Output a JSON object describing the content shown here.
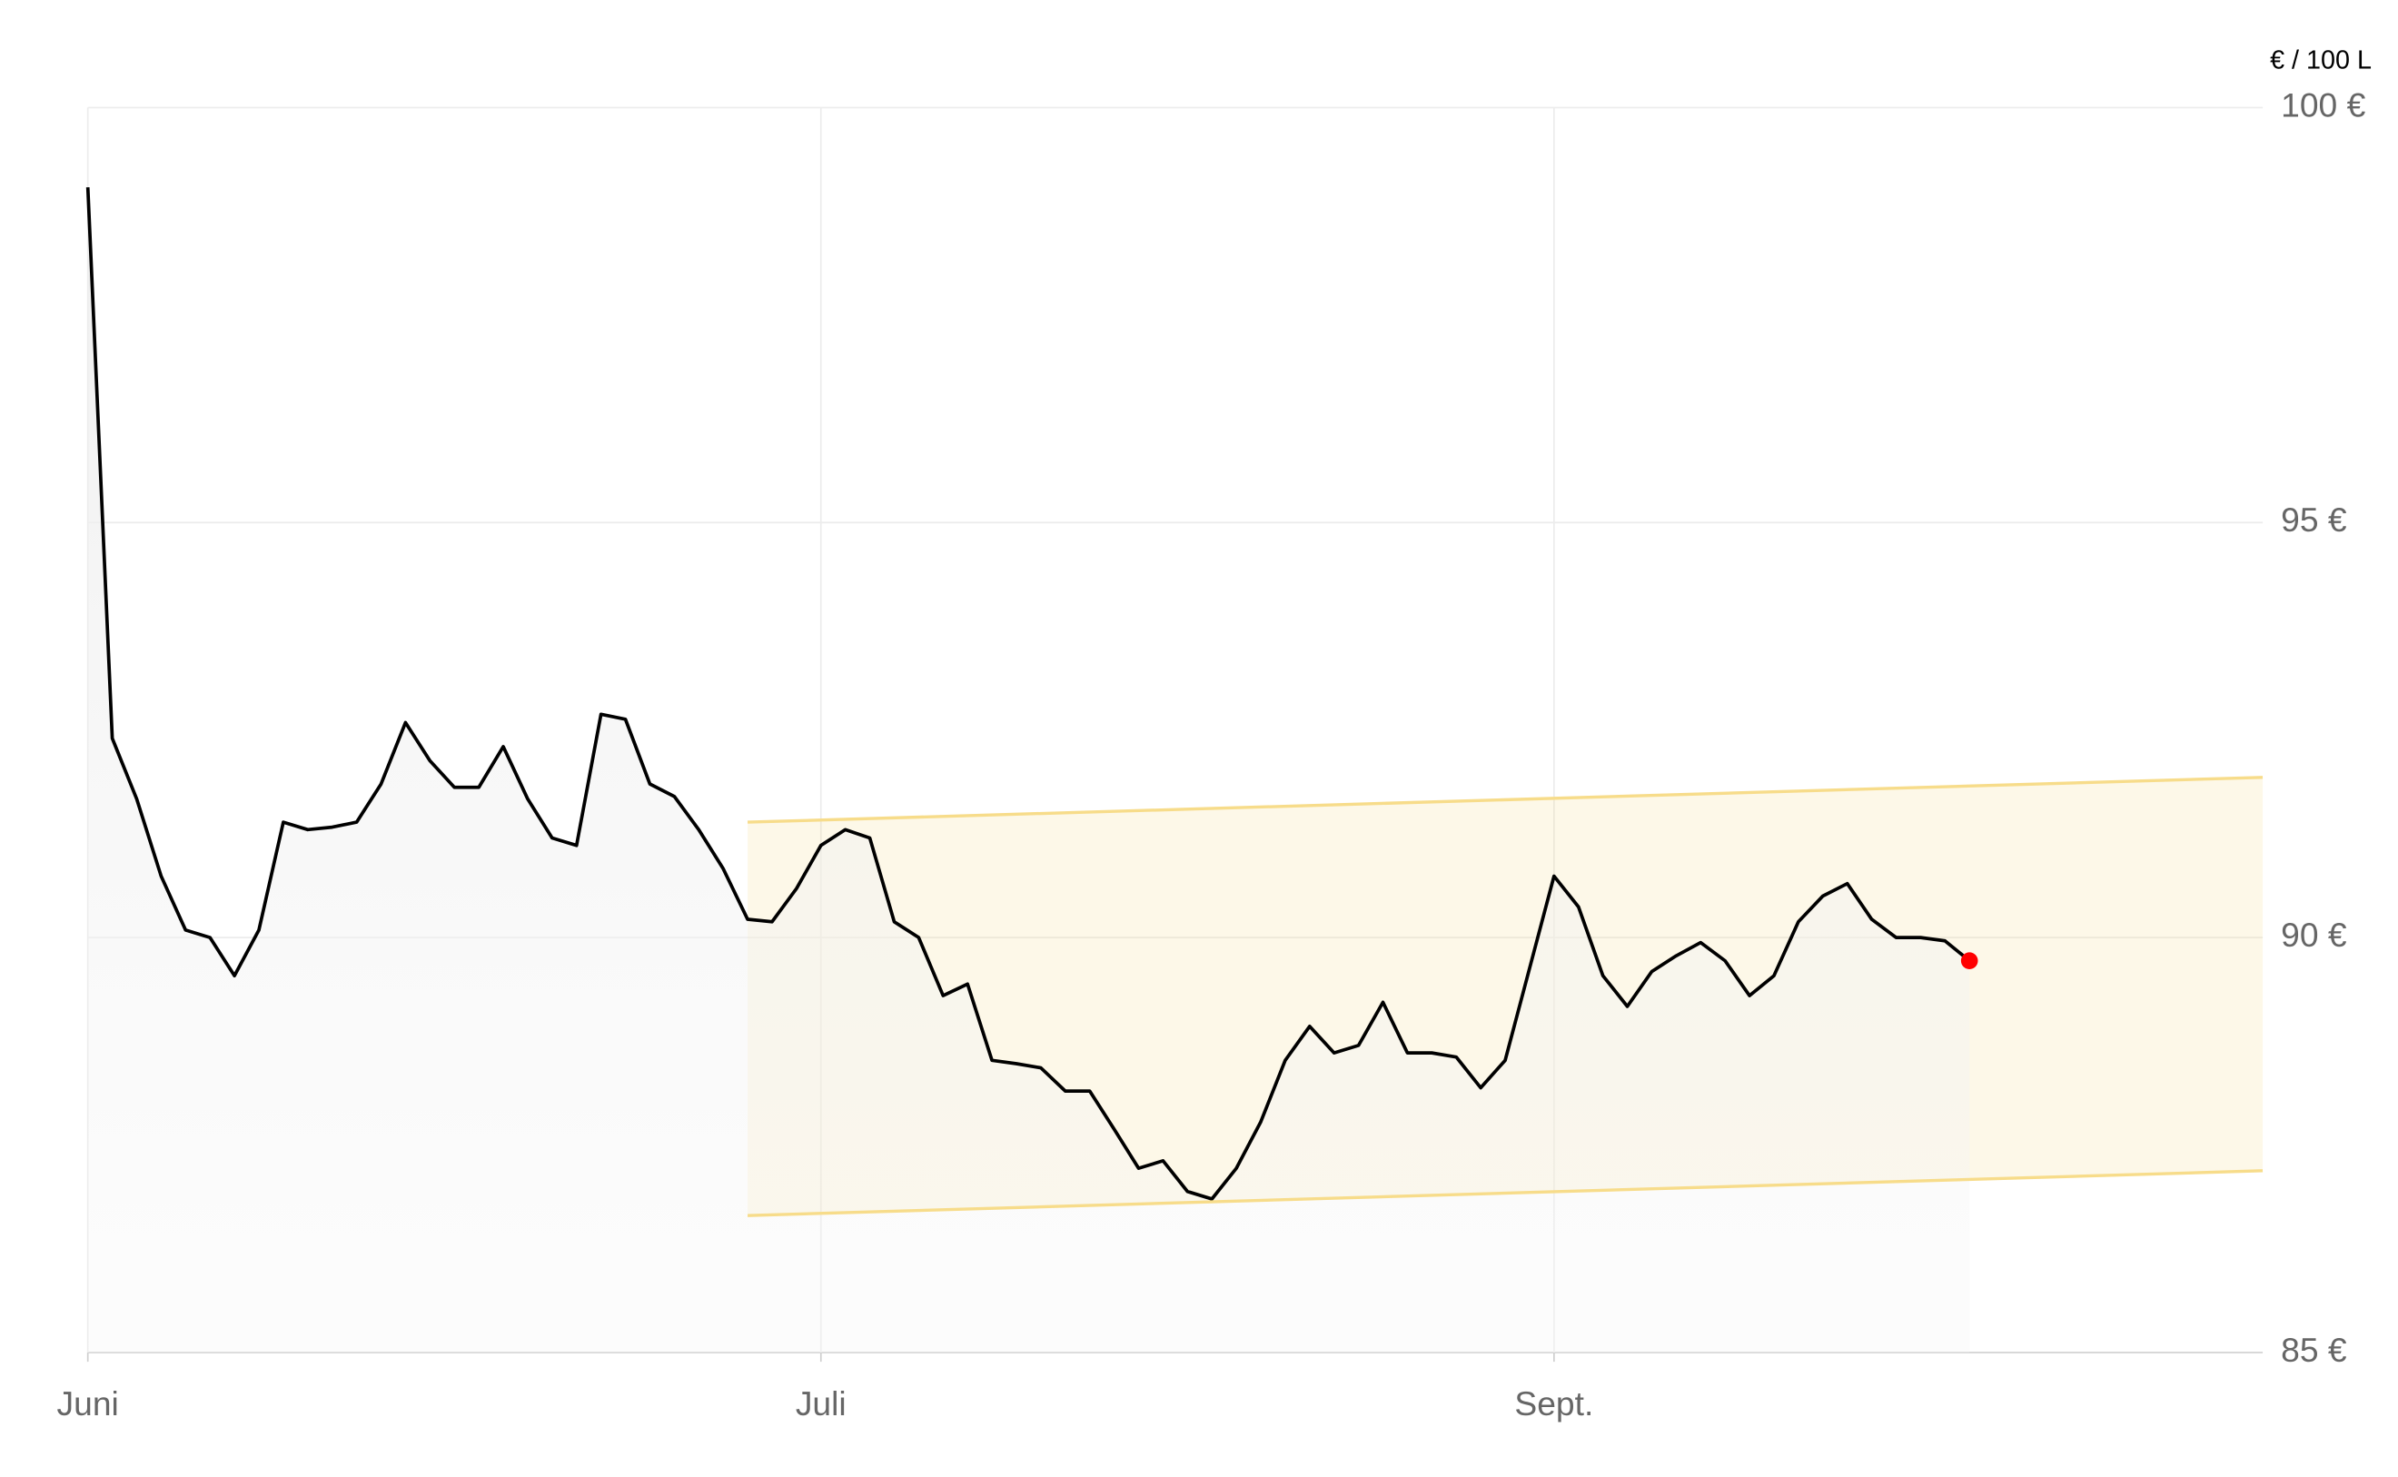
{
  "chart_data": {
    "type": "line",
    "unit_label": "€ / 100 L",
    "categories": [
      "Juni",
      null,
      null,
      null,
      null,
      null,
      null,
      null,
      null,
      null,
      null,
      null,
      null,
      null,
      null,
      null,
      null,
      null,
      null,
      null,
      null,
      null,
      null,
      null,
      null,
      null,
      null,
      null,
      null,
      null,
      "Juli",
      null,
      null,
      null,
      null,
      null,
      null,
      null,
      null,
      null,
      null,
      null,
      null,
      null,
      null,
      null,
      null,
      null,
      null,
      null,
      null,
      null,
      null,
      null,
      null,
      null,
      null,
      null,
      null,
      null,
      "Sept.",
      null,
      null,
      null,
      null,
      null,
      null,
      null,
      null,
      null,
      null,
      null,
      null,
      null,
      null,
      null,
      null,
      null,
      null,
      null,
      null,
      null,
      null,
      null,
      null,
      null,
      null,
      null,
      null,
      null
    ],
    "series": [
      {
        "color": "#000000",
        "values": [
          99.04,
          92.4,
          91.67,
          90.74,
          90.09,
          90.0,
          89.54,
          90.09,
          91.39,
          91.3,
          91.33,
          91.39,
          91.85,
          92.59,
          92.13,
          91.81,
          91.81,
          92.3,
          91.67,
          91.2,
          91.11,
          92.69,
          92.63,
          91.85,
          91.7,
          91.3,
          90.83,
          90.22,
          90.19,
          90.59,
          91.11,
          91.3,
          91.2,
          90.19,
          90.0,
          89.3,
          89.44,
          88.52,
          88.48,
          88.43,
          88.15,
          88.15,
          87.69,
          87.22,
          87.31,
          86.94,
          86.85,
          87.22,
          87.78,
          88.52,
          88.93,
          88.61,
          88.7,
          89.22,
          88.61,
          88.61,
          88.56,
          88.19,
          88.52,
          89.63,
          90.74,
          90.37,
          89.54,
          89.17,
          89.59,
          89.78,
          89.94,
          89.72,
          89.3,
          89.54,
          90.19,
          90.5,
          90.65,
          90.22,
          90.0,
          90.0,
          89.96,
          89.72,
          null,
          null,
          null,
          null,
          null,
          null,
          null,
          null,
          null,
          null,
          null,
          null
        ]
      },
      {
        "color": "#f7dc8a",
        "band": "upper",
        "values": [
          null,
          null,
          null,
          null,
          null,
          null,
          null,
          null,
          null,
          null,
          null,
          null,
          null,
          null,
          null,
          null,
          null,
          null,
          null,
          null,
          null,
          null,
          null,
          null,
          null,
          null,
          null,
          91.39,
          null,
          null,
          null,
          null,
          null,
          null,
          null,
          null,
          null,
          null,
          null,
          null,
          null,
          null,
          null,
          null,
          null,
          null,
          null,
          null,
          null,
          null,
          null,
          null,
          null,
          null,
          null,
          null,
          null,
          null,
          null,
          null,
          null,
          null,
          null,
          null,
          null,
          null,
          null,
          null,
          null,
          null,
          null,
          null,
          null,
          null,
          null,
          null,
          null,
          null,
          null,
          null,
          null,
          null,
          null,
          null,
          null,
          null,
          null,
          null,
          null,
          91.93
        ]
      },
      {
        "color": "#f7dc8a",
        "band": "lower",
        "values": [
          null,
          null,
          null,
          null,
          null,
          null,
          null,
          null,
          null,
          null,
          null,
          null,
          null,
          null,
          null,
          null,
          null,
          null,
          null,
          null,
          null,
          null,
          null,
          null,
          null,
          null,
          null,
          86.65,
          null,
          null,
          null,
          null,
          null,
          null,
          null,
          null,
          null,
          null,
          null,
          null,
          null,
          null,
          null,
          null,
          null,
          null,
          null,
          null,
          null,
          null,
          null,
          null,
          null,
          null,
          null,
          null,
          null,
          null,
          null,
          null,
          null,
          null,
          null,
          null,
          null,
          null,
          null,
          null,
          null,
          null,
          null,
          null,
          null,
          null,
          null,
          null,
          null,
          null,
          null,
          null,
          null,
          null,
          null,
          null,
          null,
          null,
          null,
          null,
          null,
          87.19
        ]
      }
    ],
    "last_point_color": "#ff0000",
    "ylim": [
      85,
      100
    ],
    "yticks": [
      {
        "value": 85,
        "label": "85 €"
      },
      {
        "value": 90,
        "label": "90 €"
      },
      {
        "value": 95,
        "label": "95 €"
      },
      {
        "value": 100,
        "label": "100 €"
      }
    ],
    "grid": true
  }
}
